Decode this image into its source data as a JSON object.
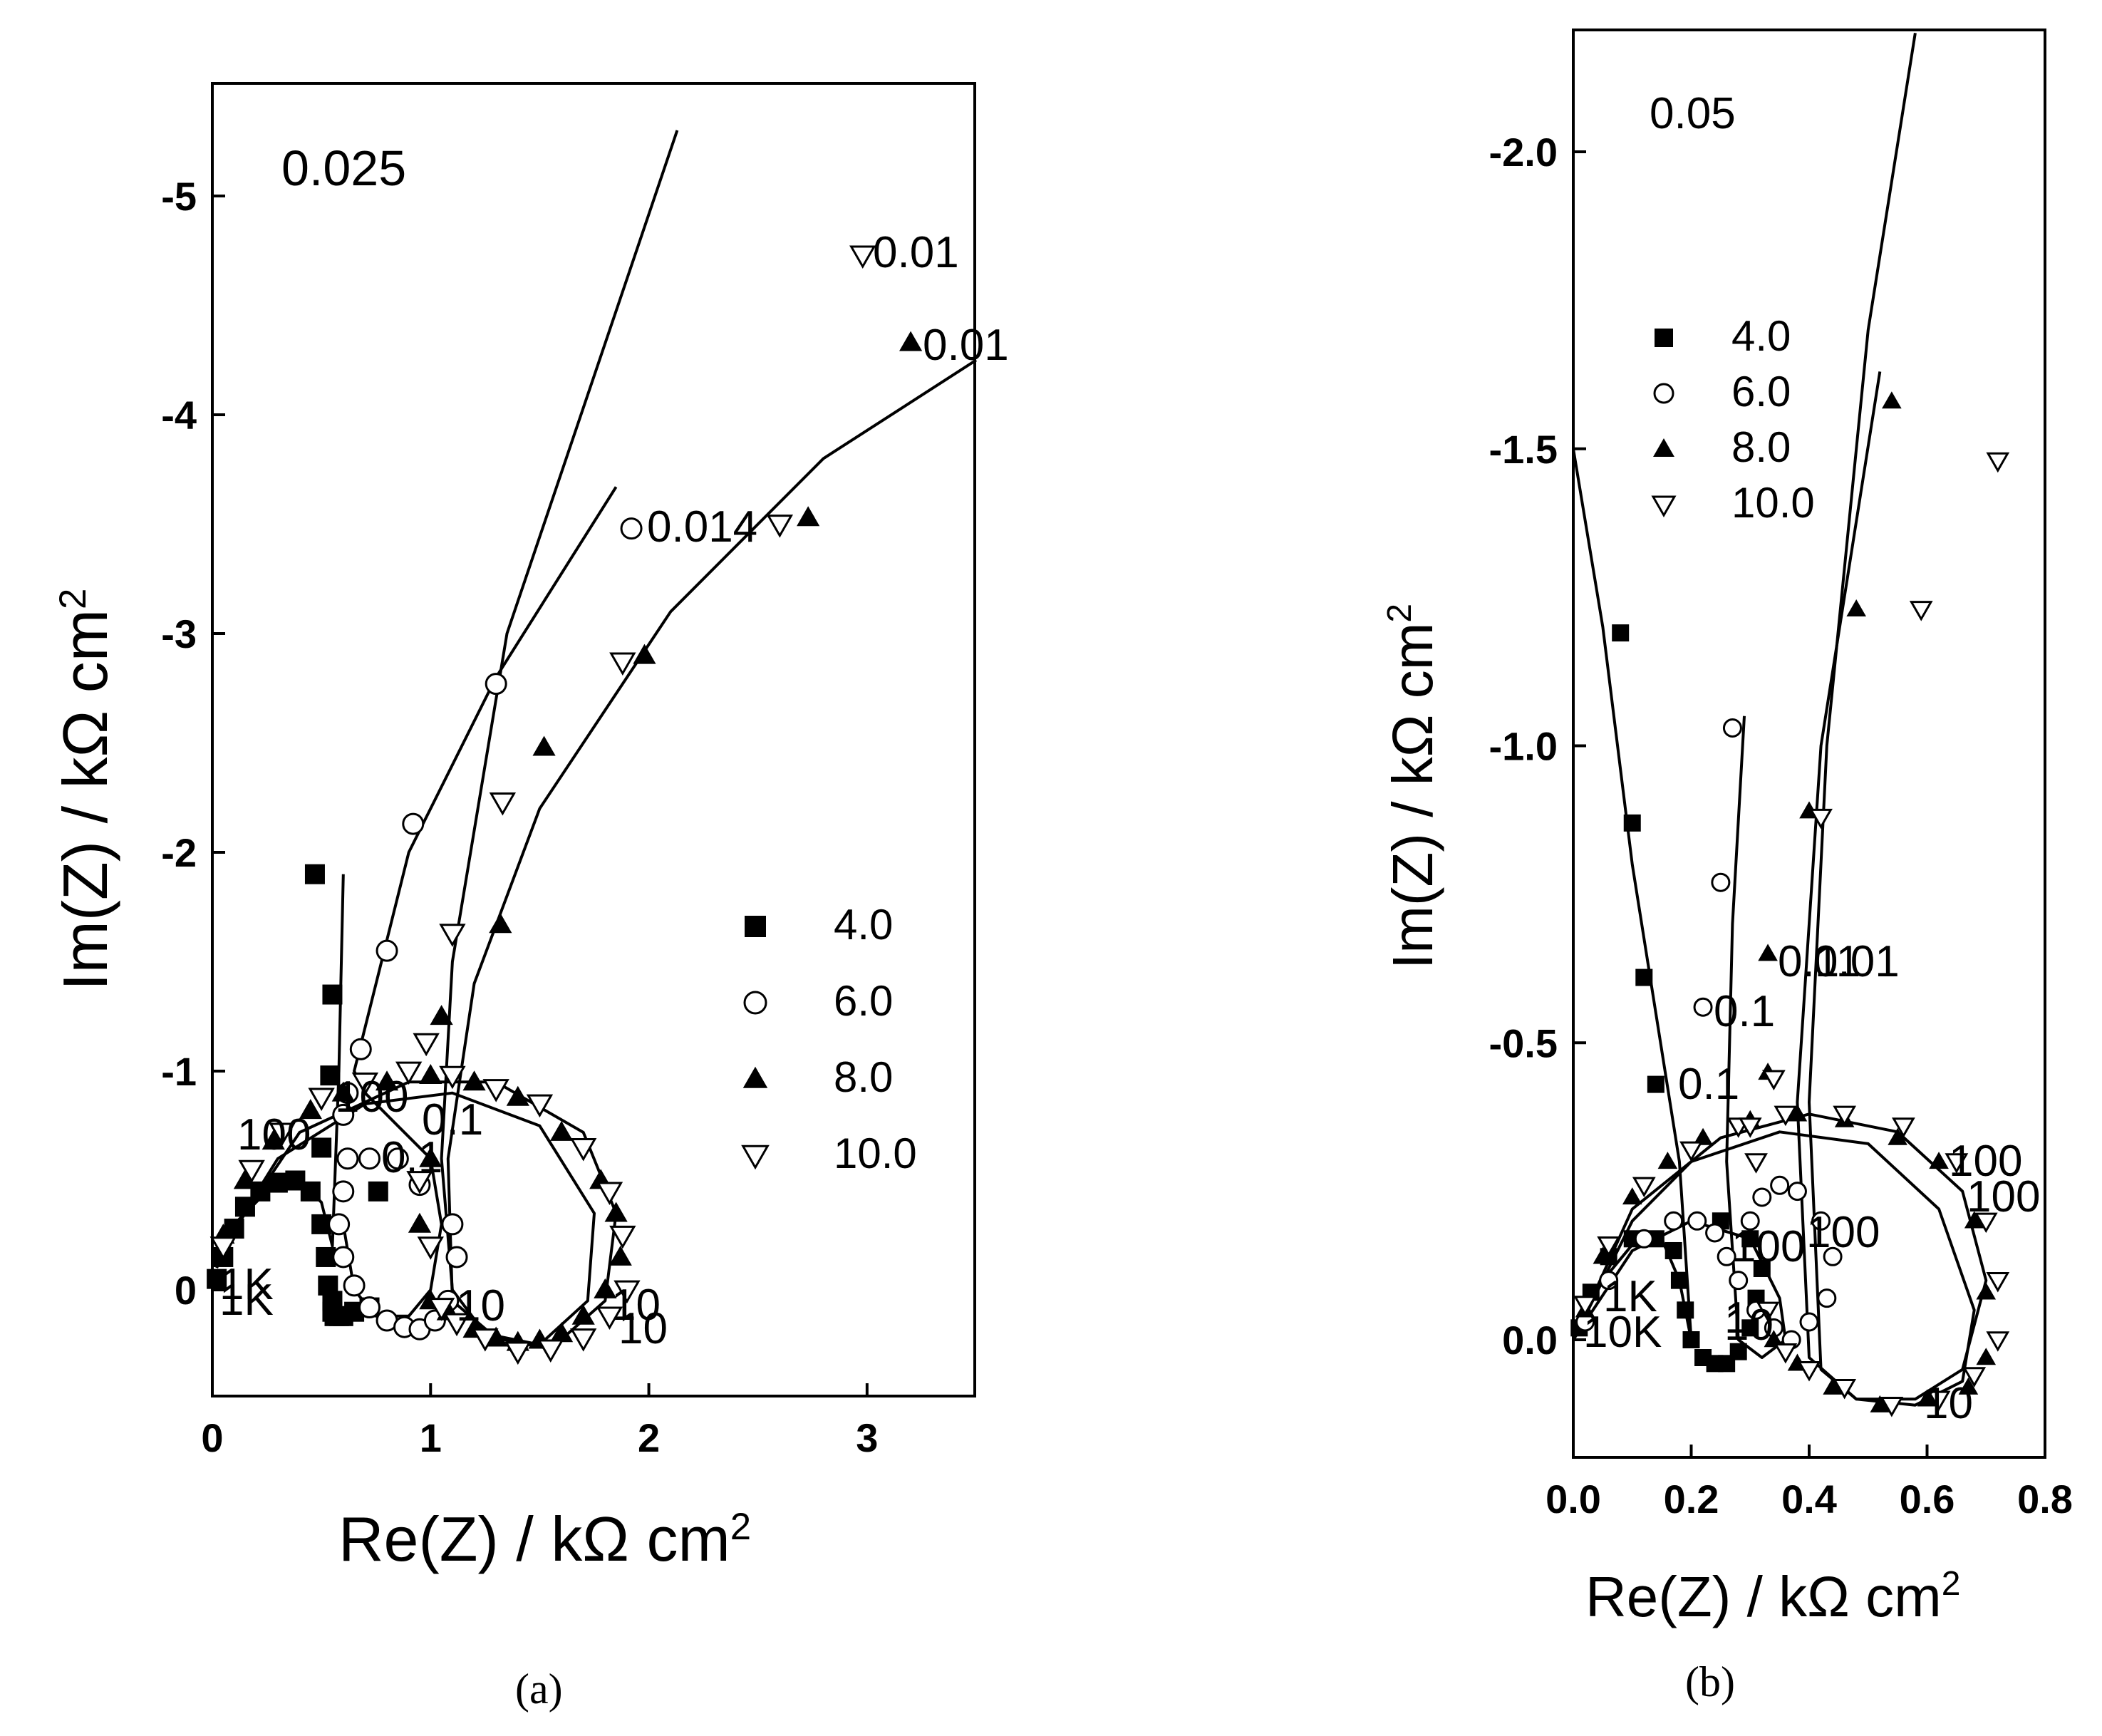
{
  "chart_data": [
    {
      "type": "scatter",
      "panel_label": "0.025",
      "caption": "(a)",
      "xlabel": "Re(Z) / kΩ cm²",
      "ylabel": "Im(Z) / kΩ cm²",
      "xlim": [
        0,
        3.5
      ],
      "ylim": [
        0.5,
        -5.5
      ],
      "y_inverted": true,
      "xticks": [
        "0",
        "1",
        "2",
        "3"
      ],
      "yticks": [
        "0",
        "-1",
        "-2",
        "-3",
        "-4",
        "-5"
      ],
      "legend_placement": "right-middle",
      "series": [
        {
          "name": "4.0",
          "marker": "filled-square",
          "x": [
            0.02,
            0.05,
            0.1,
            0.15,
            0.22,
            0.3,
            0.38,
            0.45,
            0.5,
            0.52,
            0.53,
            0.55,
            0.55,
            0.56,
            0.58,
            0.6,
            0.65,
            0.72,
            0.76,
            0.5,
            0.54,
            0.55,
            0.47
          ],
          "y": [
            -0.05,
            -0.15,
            -0.28,
            -0.38,
            -0.45,
            -0.49,
            -0.5,
            -0.45,
            -0.3,
            -0.15,
            -0.02,
            0.05,
            0.1,
            0.12,
            0.12,
            0.12,
            0.1,
            0.08,
            -0.45,
            -0.65,
            -0.98,
            -1.35,
            -1.9
          ]
        },
        {
          "name": "6.0",
          "marker": "open-circle",
          "x": [
            0.6,
            0.58,
            0.6,
            0.65,
            0.72,
            0.8,
            0.88,
            0.95,
            1.02,
            1.08,
            1.12,
            1.1,
            0.95,
            0.85,
            0.72,
            0.62,
            0.6,
            0.62,
            0.68,
            0.8,
            0.92,
            1.3,
            1.92
          ],
          "y": [
            -0.45,
            -0.3,
            -0.15,
            -0.02,
            0.08,
            0.14,
            0.17,
            0.18,
            0.14,
            0.05,
            -0.15,
            -0.3,
            -0.48,
            -0.6,
            -0.6,
            -0.6,
            -0.8,
            -0.9,
            -1.1,
            -1.55,
            -2.13,
            -2.77,
            -3.48
          ]
        },
        {
          "name": "8.0",
          "marker": "filled-triangle",
          "x": [
            0.05,
            0.15,
            0.28,
            0.45,
            0.6,
            0.8,
            1.0,
            1.2,
            1.4,
            1.6,
            1.78,
            1.85,
            1.87,
            1.8,
            1.7,
            1.6,
            1.5,
            1.4,
            1.3,
            1.2,
            1.08,
            1.0,
            0.95,
            1.0,
            1.05,
            1.32,
            1.52,
            1.98,
            2.73,
            3.2
          ],
          "y": [
            -0.25,
            -0.5,
            -0.68,
            -0.82,
            -0.9,
            -0.95,
            -0.98,
            -0.95,
            -0.88,
            -0.72,
            -0.5,
            -0.35,
            -0.15,
            0.0,
            0.12,
            0.2,
            0.23,
            0.24,
            0.22,
            0.18,
            0.1,
            0.05,
            -0.3,
            -0.6,
            -1.25,
            -1.67,
            -2.48,
            -2.9,
            -3.53,
            -4.33
          ]
        },
        {
          "name": "10.0",
          "marker": "open-triangle-down",
          "x": [
            0.05,
            0.18,
            0.32,
            0.5,
            0.7,
            0.9,
            1.1,
            1.3,
            1.5,
            1.7,
            1.82,
            1.88,
            1.9,
            1.82,
            1.7,
            1.55,
            1.4,
            1.25,
            1.12,
            1.05,
            1.0,
            0.95,
            0.98,
            1.1,
            1.33,
            1.88,
            2.6,
            2.98
          ],
          "y": [
            -0.2,
            -0.55,
            -0.72,
            -0.88,
            -0.95,
            -1.0,
            -0.98,
            -0.92,
            -0.85,
            -0.65,
            -0.45,
            -0.25,
            0.0,
            0.12,
            0.22,
            0.27,
            0.28,
            0.22,
            0.15,
            0.08,
            -0.2,
            -0.5,
            -1.13,
            -1.63,
            -2.23,
            -2.87,
            -3.5,
            -4.73
          ]
        }
      ],
      "fit_curves": [
        {
          "x": [
            0.02,
            0.1,
            0.25,
            0.4,
            0.5,
            0.55,
            0.58,
            0.6
          ],
          "y": [
            -0.1,
            -0.3,
            -0.45,
            -0.5,
            -0.4,
            -0.2,
            -1.0,
            -1.9
          ]
        },
        {
          "x": [
            0.6,
            0.65,
            0.75,
            0.9,
            1.0,
            1.05,
            1.0,
            0.85,
            0.7,
            0.65,
            0.9,
            1.3,
            1.85
          ],
          "y": [
            -0.3,
            0.0,
            0.12,
            0.12,
            0.0,
            -0.3,
            -0.6,
            -0.75,
            -0.9,
            -1.0,
            -2.0,
            -2.8,
            -3.67
          ]
        },
        {
          "x": [
            0.05,
            0.3,
            0.7,
            1.1,
            1.5,
            1.75,
            1.72,
            1.5,
            1.25,
            1.1,
            1.05,
            1.1,
            1.35,
            2.13
          ],
          "y": [
            -0.2,
            -0.6,
            -0.85,
            -0.9,
            -0.75,
            -0.35,
            0.05,
            0.25,
            0.2,
            0.0,
            -0.6,
            -1.5,
            -3.0,
            -5.3
          ]
        },
        {
          "x": [
            0.05,
            0.4,
            0.9,
            1.3,
            1.7,
            1.85,
            1.8,
            1.55,
            1.3,
            1.1,
            1.08,
            1.2,
            1.5,
            2.1,
            2.8,
            3.5
          ],
          "y": [
            -0.2,
            -0.72,
            -0.95,
            -0.95,
            -0.72,
            -0.35,
            0.05,
            0.27,
            0.22,
            0.05,
            -0.6,
            -1.4,
            -2.2,
            -3.1,
            -3.8,
            -4.25
          ]
        }
      ],
      "annotations": [
        "0.01",
        "0.01",
        "0.014",
        "0.1",
        "0.1",
        "10",
        "10",
        "10",
        "1K",
        "1K",
        "100",
        "100"
      ]
    },
    {
      "type": "scatter",
      "panel_label": "0.05",
      "caption": "(b)",
      "xlabel": "Re(Z) / kΩ cm²",
      "ylabel": "Im(Z) / kΩ cm²",
      "xlim": [
        0,
        0.8
      ],
      "ylim": [
        0.2,
        -2.2
      ],
      "y_inverted": true,
      "xticks": [
        "0.0",
        "0.2",
        "0.4",
        "0.6",
        "0.8"
      ],
      "yticks": [
        "0.0",
        "-0.5",
        "-1.0",
        "-1.5",
        "-2.0"
      ],
      "legend_placement": "top-left",
      "series": [
        {
          "name": "4.0",
          "marker": "filled-square",
          "x": [
            0.01,
            0.03,
            0.06,
            0.1,
            0.14,
            0.17,
            0.18,
            0.19,
            0.2,
            0.22,
            0.24,
            0.26,
            0.28,
            0.3,
            0.31,
            0.32,
            0.3,
            0.25,
            0.14,
            0.12,
            0.1,
            0.08
          ],
          "y": [
            -0.02,
            -0.08,
            -0.14,
            -0.17,
            -0.17,
            -0.15,
            -0.1,
            -0.05,
            0.0,
            0.03,
            0.04,
            0.04,
            0.02,
            -0.02,
            -0.07,
            -0.12,
            -0.17,
            -0.2,
            -0.43,
            -0.61,
            -0.87,
            -1.19
          ]
        },
        {
          "name": "6.0",
          "marker": "open-circle",
          "x": [
            0.02,
            0.06,
            0.12,
            0.17,
            0.21,
            0.24,
            0.26,
            0.28,
            0.31,
            0.34,
            0.37,
            0.4,
            0.43,
            0.44,
            0.42,
            0.38,
            0.35,
            0.32,
            0.3,
            0.22,
            0.25,
            0.27
          ],
          "y": [
            -0.03,
            -0.1,
            -0.17,
            -0.2,
            -0.2,
            -0.18,
            -0.14,
            -0.1,
            -0.05,
            -0.02,
            0.0,
            -0.03,
            -0.07,
            -0.14,
            -0.2,
            -0.25,
            -0.26,
            -0.24,
            -0.2,
            -0.56,
            -0.77,
            -1.03
          ]
        },
        {
          "name": "8.0",
          "marker": "filled-triangle",
          "x": [
            0.02,
            0.05,
            0.1,
            0.16,
            0.22,
            0.3,
            0.38,
            0.46,
            0.55,
            0.62,
            0.68,
            0.7,
            0.7,
            0.67,
            0.6,
            0.52,
            0.44,
            0.38,
            0.34,
            0.33,
            0.33,
            0.4,
            0.48,
            0.54
          ],
          "y": [
            -0.05,
            -0.14,
            -0.24,
            -0.3,
            -0.34,
            -0.37,
            -0.38,
            -0.37,
            -0.34,
            -0.3,
            -0.2,
            -0.08,
            0.03,
            0.08,
            0.1,
            0.11,
            0.08,
            0.04,
            0.0,
            -0.45,
            -0.65,
            -0.89,
            -1.23,
            -1.58
          ]
        },
        {
          "name": "10.0",
          "marker": "open-triangle-down",
          "x": [
            0.02,
            0.06,
            0.12,
            0.2,
            0.28,
            0.36,
            0.46,
            0.56,
            0.65,
            0.7,
            0.72,
            0.72,
            0.68,
            0.62,
            0.54,
            0.46,
            0.4,
            0.36,
            0.33,
            0.31,
            0.3,
            0.34,
            0.42,
            0.59,
            0.72
          ],
          "y": [
            -0.06,
            -0.16,
            -0.26,
            -0.32,
            -0.36,
            -0.38,
            -0.38,
            -0.36,
            -0.3,
            -0.2,
            -0.1,
            0.0,
            0.06,
            0.1,
            0.11,
            0.08,
            0.05,
            0.02,
            -0.05,
            -0.3,
            -0.36,
            -0.44,
            -0.88,
            -1.23,
            -1.48
          ]
        }
      ],
      "fit_curves": [
        {
          "x": [
            0.0,
            0.05,
            0.1,
            0.15,
            0.18,
            0.2,
            0.18,
            0.1,
            0.05,
            0.0
          ],
          "y": [
            0.0,
            -0.1,
            -0.16,
            -0.17,
            -0.1,
            0.0,
            -0.3,
            -0.8,
            -1.2,
            -1.5
          ]
        },
        {
          "x": [
            0.0,
            0.1,
            0.2,
            0.3,
            0.35,
            0.36,
            0.32,
            0.28,
            0.26,
            0.27,
            0.29
          ],
          "y": [
            0.0,
            -0.15,
            -0.2,
            -0.17,
            -0.07,
            0.0,
            0.03,
            0.0,
            -0.3,
            -0.7,
            -1.05
          ]
        },
        {
          "x": [
            0.0,
            0.1,
            0.2,
            0.35,
            0.5,
            0.62,
            0.68,
            0.66,
            0.58,
            0.48,
            0.4,
            0.38,
            0.42,
            0.52
          ],
          "y": [
            0.0,
            -0.2,
            -0.3,
            -0.35,
            -0.33,
            -0.22,
            -0.05,
            0.07,
            0.11,
            0.1,
            0.03,
            -0.4,
            -1.0,
            -1.63
          ]
        },
        {
          "x": [
            0.0,
            0.1,
            0.25,
            0.4,
            0.55,
            0.66,
            0.7,
            0.66,
            0.58,
            0.48,
            0.42,
            0.4,
            0.43,
            0.5,
            0.58
          ],
          "y": [
            0.0,
            -0.22,
            -0.34,
            -0.38,
            -0.35,
            -0.25,
            -0.1,
            0.05,
            0.1,
            0.1,
            0.05,
            -0.4,
            -1.0,
            -1.7,
            -2.2
          ]
        }
      ],
      "annotations": [
        "0.1",
        "0.1",
        "0.11",
        "0.01",
        "100",
        "100",
        "100",
        "100",
        "10",
        "10",
        "1K",
        "10K",
        "1"
      ]
    }
  ]
}
